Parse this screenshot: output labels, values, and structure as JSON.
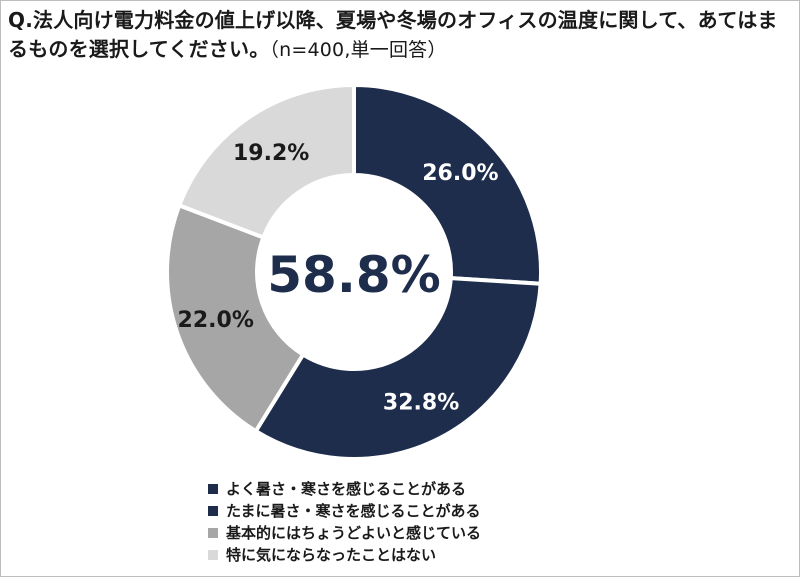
{
  "title": {
    "question": "Q.法人向け電力料金の値上げ以降、夏場や冬場のオフィスの温度に関して、あてはまるものを選択してください。",
    "note": "（n=400,単一回答）"
  },
  "chart_data": {
    "type": "pie",
    "donut": true,
    "title": "Q.法人向け電力料金の値上げ以降、夏場や冬場のオフィスの温度に関して、あてはまるものを選択してください。（n=400,単一回答）",
    "center_label": "58.8%",
    "slices": [
      {
        "label": "よく暑さ・寒さを感じることがある",
        "value": 26.0,
        "display": "26.0%",
        "color": "#1f2d4d",
        "label_color": "#ffffff"
      },
      {
        "label": "たまに暑さ・寒さを感じることがある",
        "value": 32.8,
        "display": "32.8%",
        "color": "#1f2d4d",
        "label_color": "#ffffff"
      },
      {
        "label": "基本的にはちょうどよいと感じている",
        "value": 22.0,
        "display": "22.0%",
        "color": "#a6a6a6",
        "label_color": "#1a1a1a"
      },
      {
        "label": "特に気にならなったことはない",
        "value": 19.2,
        "display": "19.2%",
        "color": "#d9d9d9",
        "label_color": "#1a1a1a"
      }
    ],
    "legend_position": "bottom",
    "center_color": "#1f2d4d"
  },
  "legend": {
    "items": [
      {
        "label": "よく暑さ・寒さを感じることがある",
        "color": "#1f2d4d"
      },
      {
        "label": "たまに暑さ・寒さを感じることがある",
        "color": "#1f2d4d"
      },
      {
        "label": "基本的にはちょうどよいと感じている",
        "color": "#a6a6a6"
      },
      {
        "label": "特に気にならなったことはない",
        "color": "#d9d9d9"
      }
    ]
  }
}
